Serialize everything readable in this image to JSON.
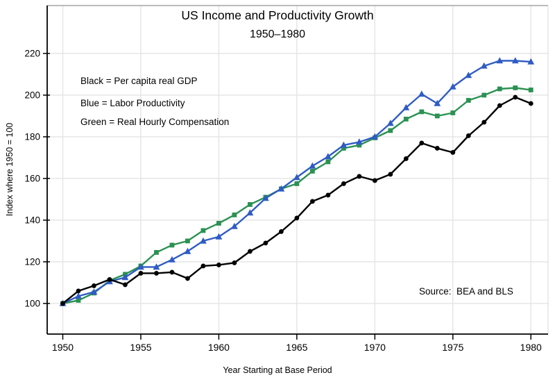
{
  "title": "US Income and Productivity Growth",
  "subtitle": "1950–1980",
  "legend": [
    {
      "label": "Black = Per capita real GDP",
      "color": "#000000"
    },
    {
      "label": "Blue = Labor Productivity",
      "color": "#3c3ce0"
    },
    {
      "label": "Green = Real Hourly Compensation",
      "color": "#1b7a4b"
    }
  ],
  "source_note": "Source:  BEA and BLS",
  "chart_data": {
    "type": "line",
    "title": "US Income and Productivity Growth",
    "subtitle": "1950–1980",
    "xlabel": "Year Starting at Base Period",
    "ylabel": "Index where 1950 = 100",
    "grid": true,
    "legend_position": "upper-left-inside",
    "x_ticks": [
      1950,
      1955,
      1960,
      1965,
      1970,
      1975,
      1980
    ],
    "y_ticks": [
      100,
      120,
      140,
      160,
      180,
      200,
      220
    ],
    "ylim_labeled": [
      100,
      220
    ],
    "x": [
      1950,
      1951,
      1952,
      1953,
      1954,
      1955,
      1956,
      1957,
      1958,
      1959,
      1960,
      1961,
      1962,
      1963,
      1964,
      1965,
      1966,
      1967,
      1968,
      1969,
      1970,
      1971,
      1972,
      1973,
      1974,
      1975,
      1976,
      1977,
      1978,
      1979,
      1980
    ],
    "series": [
      {
        "name": "Per capita real GDP",
        "color": "#000000",
        "marker": "circle",
        "values": [
          100,
          106,
          108.5,
          111.5,
          109,
          114.5,
          114.5,
          115,
          112,
          118,
          118.5,
          119.5,
          125,
          129,
          134.5,
          141,
          149,
          152,
          157.5,
          161,
          159,
          162,
          169.5,
          177,
          174.5,
          172.5,
          180.5,
          187,
          195,
          199,
          196
        ]
      },
      {
        "name": "Labor Productivity",
        "color": "#2f5cc4",
        "marker": "triangle",
        "values": [
          100,
          103.5,
          105.5,
          110.5,
          112.5,
          117.5,
          117.5,
          121,
          125,
          130,
          132,
          137,
          143.5,
          150.5,
          155,
          160.5,
          166,
          170.5,
          176,
          177.5,
          180,
          186.5,
          194,
          200.5,
          196,
          204,
          209.5,
          214,
          216.5,
          216.5,
          216
        ]
      },
      {
        "name": "Real Hourly Compensation",
        "color": "#2b9152",
        "marker": "square",
        "values": [
          100,
          101.5,
          105,
          111,
          114,
          118,
          124.5,
          128,
          130,
          135,
          138.5,
          142.5,
          147.5,
          151,
          155,
          157.5,
          163.5,
          168,
          174.5,
          176,
          179.5,
          183,
          188.5,
          192,
          190,
          191.5,
          197.5,
          200,
          203,
          203.5,
          202.5
        ]
      }
    ],
    "colors": {
      "grid": "#e4e4e4",
      "axis": "#000000",
      "frame_top": "#777777",
      "frame_right": "#d8d8d8"
    }
  }
}
